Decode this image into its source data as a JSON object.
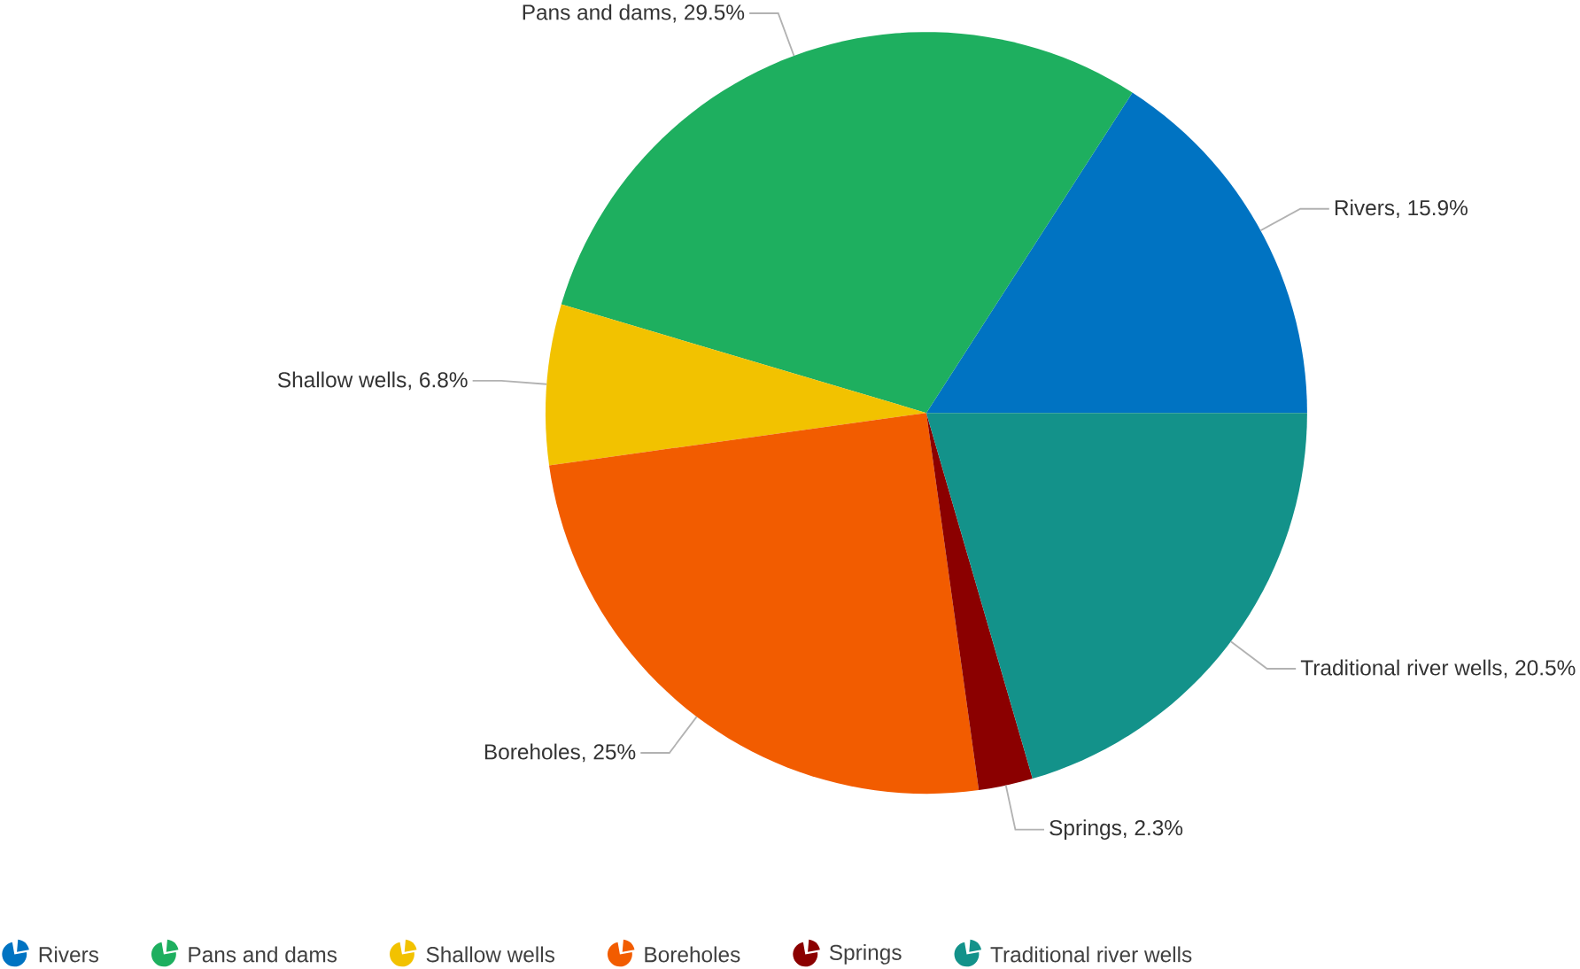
{
  "chart_data": {
    "type": "pie",
    "categories": [
      "Rivers",
      "Pans and dams",
      "Shallow wells",
      "Boreholes",
      "Springs",
      "Traditional river wells"
    ],
    "values": [
      15.9,
      29.5,
      6.8,
      25,
      2.3,
      20.5
    ],
    "colors": [
      "#0073c2",
      "#1eaf5f",
      "#f2c200",
      "#f25c00",
      "#8b0000",
      "#13928a"
    ],
    "value_labels": [
      ", 15.9%",
      ", 29.5%",
      ", 6.8%",
      ", 25%",
      ", 2.3%",
      ", 20.5%"
    ],
    "legend": "bottom"
  }
}
